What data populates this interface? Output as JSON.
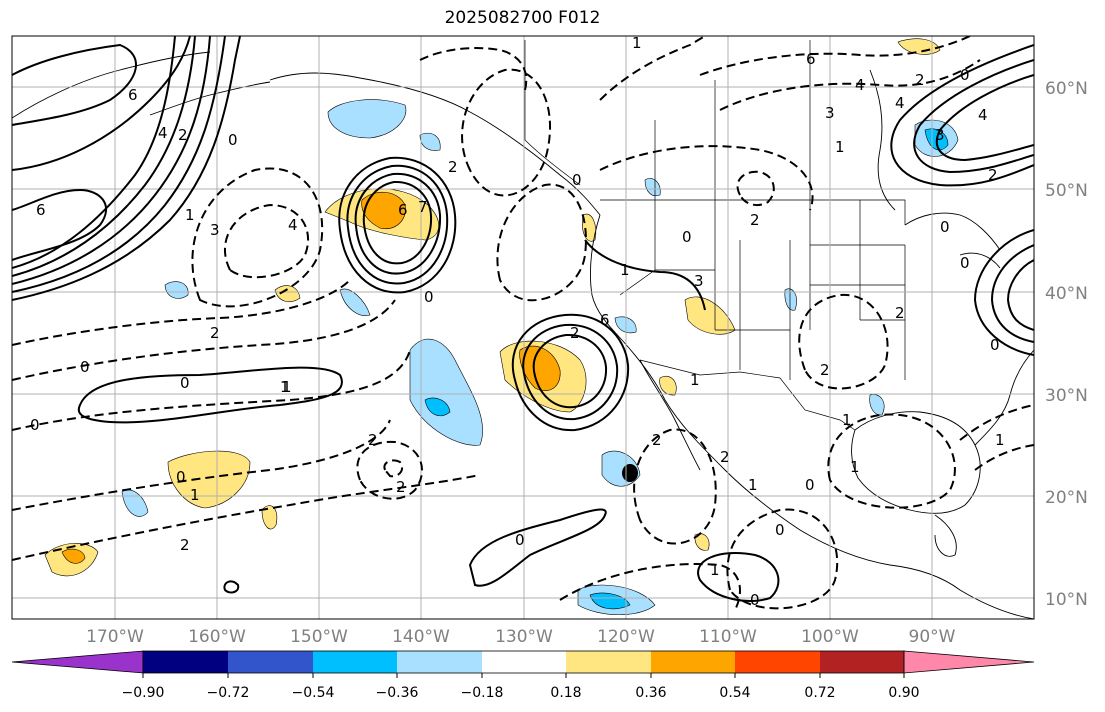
{
  "title": "2025082700 F012",
  "lat_labels": [
    "60°N",
    "50°N",
    "40°N",
    "30°N",
    "20°N",
    "10°N"
  ],
  "lon_labels": [
    "170°W",
    "160°W",
    "150°W",
    "140°W",
    "130°W",
    "120°W",
    "110°W",
    "100°W",
    "90°W"
  ],
  "colorbar": {
    "ticks": [
      "−0.90",
      "−0.72",
      "−0.54",
      "−0.36",
      "−0.18",
      "0.18",
      "0.36",
      "0.54",
      "0.72",
      "0.90"
    ],
    "colors": [
      "#9933cc",
      "#000080",
      "#3355cc",
      "#00bfff",
      "#aae0ff",
      "#ffffff",
      "#ffe680",
      "#ffa500",
      "#ff4500",
      "#b22222",
      "#ff88aa"
    ]
  },
  "contour_labels": [
    "6",
    "4",
    "2",
    "0",
    "6",
    "3",
    "4",
    "2",
    "1",
    "0",
    "6",
    "7",
    "2",
    "1",
    "0",
    "0",
    "2",
    "6",
    "1",
    "3",
    "0",
    "2",
    "0",
    "2",
    "2",
    "1",
    "0",
    "2",
    "1",
    "0",
    "1",
    "0",
    "1",
    "0",
    "2",
    "3",
    "6",
    "4",
    "2",
    "4",
    "3",
    "4",
    "2",
    "0",
    "1",
    "2",
    "0",
    "1",
    "2",
    "0",
    "1",
    "2",
    "1",
    "0",
    "0",
    "1",
    "0",
    "1"
  ]
}
